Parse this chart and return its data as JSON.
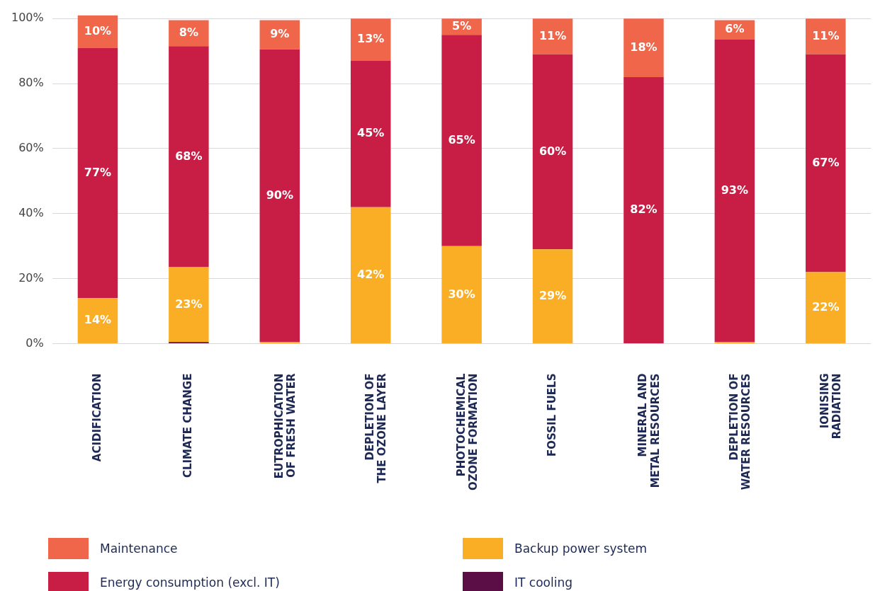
{
  "chart_data": {
    "type": "bar",
    "stacked": true,
    "categories": [
      "ACIDIFICATION",
      "CLIMATE CHANGE",
      "EUTROPHICATION OF FRESH WATER",
      "DEPLETION OF THE OZONE LAYER",
      "PHOTOCHEMICAL OZONE FORMATION",
      "FOSSIL FUELS",
      "MINERAL AND METAL RESOURCES",
      "DEPLETION OF WATER RESOURCES",
      "IONISING RADIATION"
    ],
    "series": [
      {
        "name": "IT cooling",
        "color": "#5a0e45",
        "values": [
          0,
          0.5,
          0,
          0,
          0,
          0,
          0,
          0,
          0
        ],
        "value_labels": [
          null,
          null,
          null,
          null,
          null,
          null,
          null,
          null,
          null
        ]
      },
      {
        "name": "Backup power system",
        "color": "#f9ae26",
        "values": [
          14,
          23,
          0.5,
          42,
          30,
          29,
          0,
          0.5,
          22
        ],
        "value_labels": [
          "14%",
          "23%",
          null,
          "42%",
          "30%",
          "29%",
          null,
          null,
          "22%"
        ]
      },
      {
        "name": "Energy consumption (excl. IT)",
        "color": "#c81e45",
        "values": [
          77,
          68,
          90,
          45,
          65,
          60,
          82,
          93,
          67
        ],
        "value_labels": [
          "77%",
          "68%",
          "90%",
          "45%",
          "65%",
          "60%",
          "82%",
          "93%",
          "67%"
        ]
      },
      {
        "name": "Maintenance",
        "color": "#f0664a",
        "values": [
          10,
          8,
          9,
          13,
          5,
          11,
          18,
          6,
          11
        ],
        "value_labels": [
          "10%",
          "8%",
          "9%",
          "13%",
          "5%",
          "11%",
          "18%",
          "6%",
          "11%"
        ]
      }
    ],
    "ylim": [
      0,
      101
    ],
    "yticks": [
      {
        "value": 0,
        "label": "0%"
      },
      {
        "value": 20,
        "label": "20%"
      },
      {
        "value": 40,
        "label": "40%"
      },
      {
        "value": 60,
        "label": "60%"
      },
      {
        "value": 80,
        "label": "80%"
      },
      {
        "value": 100,
        "label": "100%"
      }
    ],
    "grid": "y",
    "legend": "bottom"
  }
}
